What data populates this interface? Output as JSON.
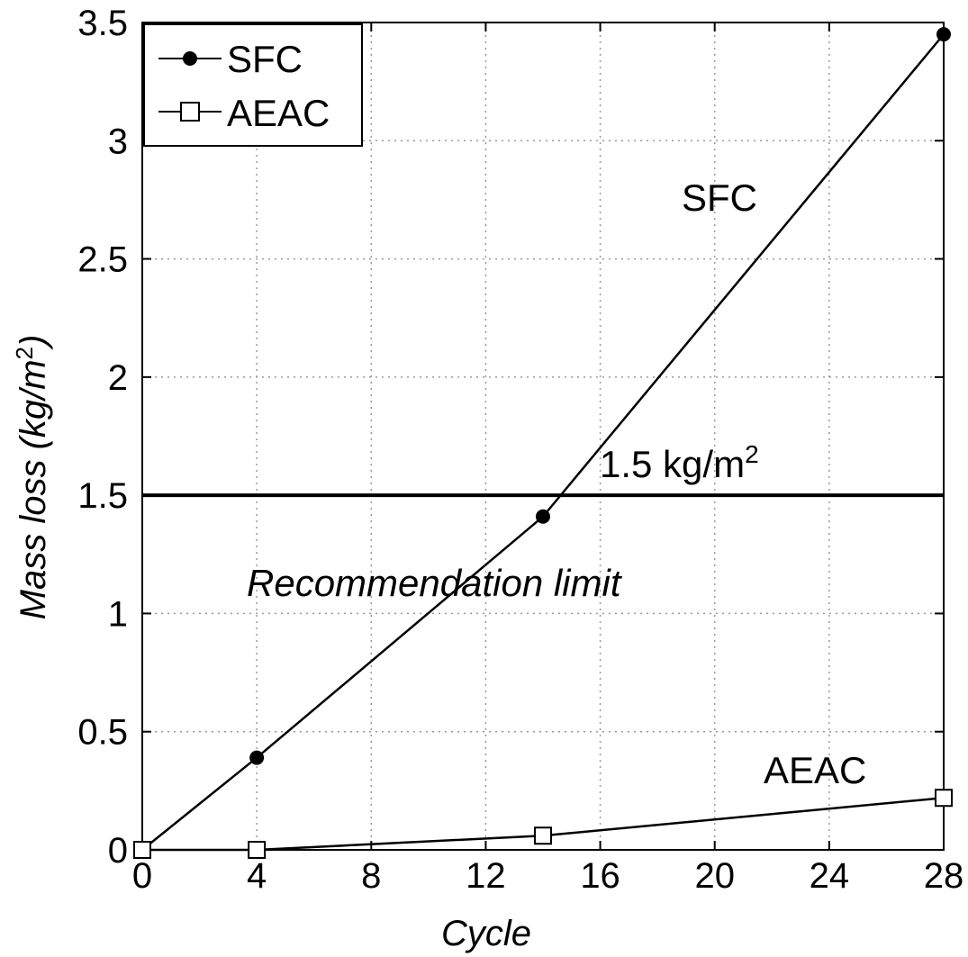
{
  "chart_data": {
    "type": "line",
    "title": "",
    "xlabel": "Cycle",
    "ylabel": "Mass loss (kg/m",
    "ylabel_superscript": "2",
    "ylabel_suffix": ")",
    "xlim": [
      0,
      28
    ],
    "ylim": [
      0,
      3.5
    ],
    "xticks": [
      0,
      4,
      8,
      12,
      16,
      20,
      24,
      28
    ],
    "yticks": [
      0,
      0.5,
      1,
      1.5,
      2,
      2.5,
      3,
      3.5
    ],
    "xtick_labels": [
      "0",
      "4",
      "8",
      "12",
      "16",
      "20",
      "24",
      "28"
    ],
    "ytick_labels": [
      "0",
      "0.5",
      "1",
      "1.5",
      "2",
      "2.5",
      "3",
      "3.5"
    ],
    "grid": true,
    "legend_position": "top-left",
    "series": [
      {
        "name": "SFC",
        "marker": "filled-circle",
        "x": [
          0,
          4,
          14,
          28
        ],
        "y": [
          0,
          0.39,
          1.41,
          3.45
        ]
      },
      {
        "name": "AEAC",
        "marker": "open-square",
        "x": [
          0,
          4,
          14,
          28
        ],
        "y": [
          0,
          0,
          0.06,
          0.22
        ]
      }
    ],
    "reference_line": {
      "y": 1.5,
      "label": "1.5 kg/m",
      "label_superscript": "2"
    },
    "annotations": {
      "sfc": "SFC",
      "aeac": "AEAC",
      "limit": "Recommendation limit"
    }
  }
}
